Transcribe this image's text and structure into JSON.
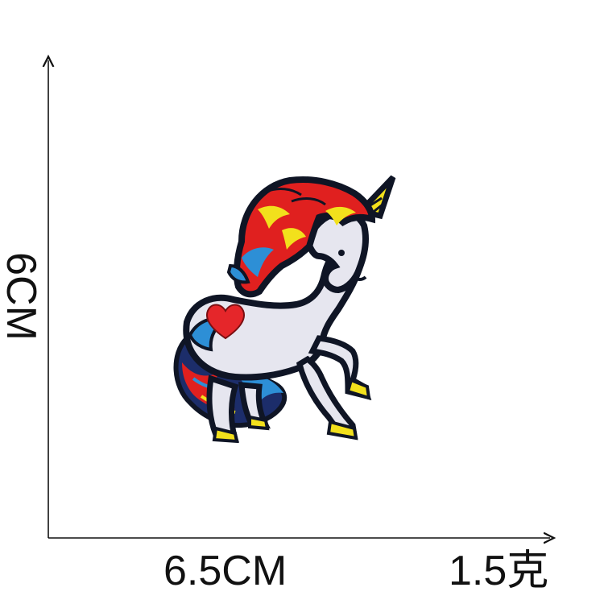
{
  "dimensions": {
    "width_label": "6.5CM",
    "height_label": "6CM",
    "weight_label": "1.5克"
  },
  "product": {
    "image_name": "unicorn-embroidered-patch",
    "colors": {
      "outline": "#101828",
      "body": "#e6e6ef",
      "mane_red": "#e0201f",
      "mane_yellow": "#f2e01c",
      "mane_blue": "#2d8fd6",
      "heart": "#e5262a"
    }
  }
}
